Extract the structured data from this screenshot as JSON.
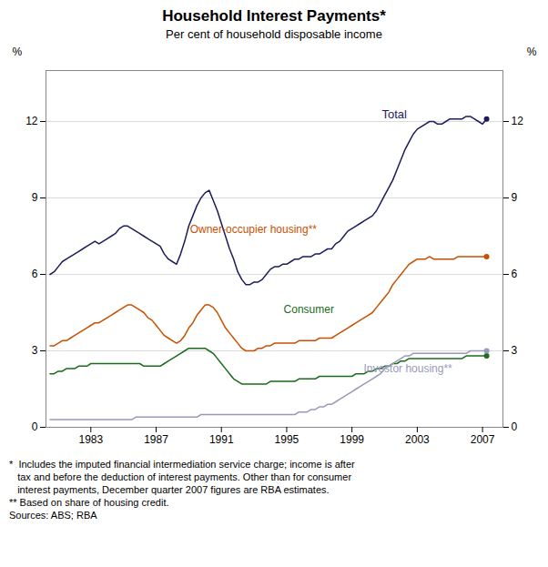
{
  "chart_data": {
    "type": "line",
    "title": "Household Interest Payments*",
    "subtitle": "Per cent of household disposable income",
    "ylabel": "%",
    "y2label": "%",
    "xlim": [
      1980.25,
      2008.25
    ],
    "xticks": [
      1983,
      1987,
      1991,
      1995,
      1999,
      2003,
      2007
    ],
    "ylim": [
      0,
      14
    ],
    "yticks": [
      0,
      3,
      6,
      9,
      12
    ],
    "y2lim": [
      0,
      14
    ],
    "y2ticks": [
      0,
      3,
      6,
      9,
      12
    ],
    "grid": "y",
    "footnotes": [
      "*  Includes the imputed financial intermediation service charge; income is after",
      "   tax and before the deduction of interest payments. Other than for consumer",
      "   interest payments, December quarter 2007 figures are RBA estimates.",
      "** Based on share of housing credit.",
      "Sources: ABS; RBA"
    ],
    "x": [
      1980.5,
      1980.75,
      1981,
      1981.25,
      1981.5,
      1981.75,
      1982,
      1982.25,
      1982.5,
      1982.75,
      1983,
      1983.25,
      1983.5,
      1983.75,
      1984,
      1984.25,
      1984.5,
      1984.75,
      1985,
      1985.25,
      1985.5,
      1985.75,
      1986,
      1986.25,
      1986.5,
      1986.75,
      1987,
      1987.25,
      1987.5,
      1987.75,
      1988,
      1988.25,
      1988.5,
      1988.75,
      1989,
      1989.25,
      1989.5,
      1989.75,
      1990,
      1990.25,
      1990.5,
      1990.75,
      1991,
      1991.25,
      1991.5,
      1991.75,
      1992,
      1992.25,
      1992.5,
      1992.75,
      1993,
      1993.25,
      1993.5,
      1993.75,
      1994,
      1994.25,
      1994.5,
      1994.75,
      1995,
      1995.25,
      1995.5,
      1995.75,
      1996,
      1996.25,
      1996.5,
      1996.75,
      1997,
      1997.25,
      1997.5,
      1997.75,
      1998,
      1998.25,
      1998.5,
      1998.75,
      1999,
      1999.25,
      1999.5,
      1999.75,
      2000,
      2000.25,
      2000.5,
      2000.75,
      2001,
      2001.25,
      2001.5,
      2001.75,
      2002,
      2002.25,
      2002.5,
      2002.75,
      2003,
      2003.25,
      2003.5,
      2003.75,
      2004,
      2004.25,
      2004.5,
      2004.75,
      2005,
      2005.25,
      2005.5,
      2005.75,
      2006,
      2006.25,
      2006.5,
      2006.75,
      2007,
      2007.25
    ],
    "series": [
      {
        "name": "Total",
        "color": "#1c1c5c",
        "values": [
          6.0,
          6.1,
          6.3,
          6.5,
          6.6,
          6.7,
          6.8,
          6.9,
          7.0,
          7.1,
          7.2,
          7.3,
          7.2,
          7.3,
          7.4,
          7.5,
          7.6,
          7.8,
          7.9,
          7.9,
          7.8,
          7.7,
          7.6,
          7.5,
          7.4,
          7.3,
          7.2,
          7.1,
          6.8,
          6.6,
          6.5,
          6.4,
          6.8,
          7.3,
          7.9,
          8.3,
          8.7,
          9.0,
          9.2,
          9.3,
          8.9,
          8.5,
          8.0,
          7.5,
          7.0,
          6.6,
          6.1,
          5.8,
          5.6,
          5.6,
          5.7,
          5.7,
          5.8,
          6.0,
          6.2,
          6.3,
          6.3,
          6.4,
          6.4,
          6.5,
          6.6,
          6.6,
          6.7,
          6.7,
          6.7,
          6.8,
          6.8,
          6.9,
          7.0,
          7.0,
          7.2,
          7.3,
          7.5,
          7.7,
          7.8,
          7.9,
          8.0,
          8.1,
          8.2,
          8.3,
          8.5,
          8.8,
          9.1,
          9.4,
          9.7,
          10.1,
          10.5,
          10.9,
          11.2,
          11.5,
          11.7,
          11.8,
          11.9,
          12.0,
          12.0,
          11.9,
          11.9,
          12.0,
          12.1,
          12.1,
          12.1,
          12.1,
          12.2,
          12.2,
          12.1,
          12.0,
          11.9,
          12.1
        ]
      },
      {
        "name": "Owner-occupier housing**",
        "color": "#c85000",
        "values": [
          3.2,
          3.2,
          3.3,
          3.4,
          3.4,
          3.5,
          3.6,
          3.7,
          3.8,
          3.9,
          4.0,
          4.1,
          4.1,
          4.2,
          4.3,
          4.4,
          4.5,
          4.6,
          4.7,
          4.8,
          4.8,
          4.7,
          4.6,
          4.5,
          4.3,
          4.2,
          4.0,
          3.8,
          3.6,
          3.5,
          3.4,
          3.3,
          3.4,
          3.6,
          3.9,
          4.1,
          4.4,
          4.6,
          4.8,
          4.8,
          4.7,
          4.5,
          4.2,
          3.9,
          3.7,
          3.5,
          3.3,
          3.1,
          3.0,
          3.0,
          3.0,
          3.1,
          3.1,
          3.2,
          3.2,
          3.3,
          3.3,
          3.3,
          3.3,
          3.3,
          3.3,
          3.4,
          3.4,
          3.4,
          3.4,
          3.4,
          3.5,
          3.5,
          3.5,
          3.5,
          3.6,
          3.7,
          3.8,
          3.9,
          4.0,
          4.1,
          4.2,
          4.3,
          4.4,
          4.5,
          4.7,
          4.9,
          5.1,
          5.3,
          5.6,
          5.8,
          6.0,
          6.2,
          6.4,
          6.5,
          6.6,
          6.6,
          6.6,
          6.7,
          6.6,
          6.6,
          6.6,
          6.6,
          6.6,
          6.6,
          6.7,
          6.7,
          6.7,
          6.7,
          6.7,
          6.7,
          6.7,
          6.7
        ]
      },
      {
        "name": "Consumer",
        "color": "#1a6b1a",
        "values": [
          2.1,
          2.1,
          2.2,
          2.2,
          2.3,
          2.3,
          2.3,
          2.4,
          2.4,
          2.4,
          2.5,
          2.5,
          2.5,
          2.5,
          2.5,
          2.5,
          2.5,
          2.5,
          2.5,
          2.5,
          2.5,
          2.5,
          2.5,
          2.4,
          2.4,
          2.4,
          2.4,
          2.4,
          2.5,
          2.6,
          2.7,
          2.8,
          2.9,
          3.0,
          3.1,
          3.1,
          3.1,
          3.1,
          3.1,
          3.0,
          2.9,
          2.7,
          2.5,
          2.3,
          2.1,
          1.9,
          1.8,
          1.7,
          1.7,
          1.7,
          1.7,
          1.7,
          1.7,
          1.7,
          1.8,
          1.8,
          1.8,
          1.8,
          1.8,
          1.8,
          1.8,
          1.9,
          1.9,
          1.9,
          1.9,
          1.9,
          2.0,
          2.0,
          2.0,
          2.0,
          2.0,
          2.0,
          2.0,
          2.0,
          2.0,
          2.1,
          2.1,
          2.1,
          2.2,
          2.2,
          2.3,
          2.3,
          2.4,
          2.4,
          2.5,
          2.5,
          2.6,
          2.6,
          2.7,
          2.7,
          2.7,
          2.7,
          2.7,
          2.7,
          2.7,
          2.7,
          2.7,
          2.7,
          2.7,
          2.7,
          2.7,
          2.7,
          2.8,
          2.8,
          2.8,
          2.8,
          2.8,
          2.8
        ]
      },
      {
        "name": "Investor housing**",
        "color": "#9999bb",
        "values": [
          0.3,
          0.3,
          0.3,
          0.3,
          0.3,
          0.3,
          0.3,
          0.3,
          0.3,
          0.3,
          0.3,
          0.3,
          0.3,
          0.3,
          0.3,
          0.3,
          0.3,
          0.3,
          0.3,
          0.3,
          0.3,
          0.4,
          0.4,
          0.4,
          0.4,
          0.4,
          0.4,
          0.4,
          0.4,
          0.4,
          0.4,
          0.4,
          0.4,
          0.4,
          0.4,
          0.4,
          0.4,
          0.5,
          0.5,
          0.5,
          0.5,
          0.5,
          0.5,
          0.5,
          0.5,
          0.5,
          0.5,
          0.5,
          0.5,
          0.5,
          0.5,
          0.5,
          0.5,
          0.5,
          0.5,
          0.5,
          0.5,
          0.5,
          0.5,
          0.5,
          0.5,
          0.6,
          0.6,
          0.6,
          0.7,
          0.7,
          0.8,
          0.8,
          0.9,
          0.9,
          1.0,
          1.1,
          1.2,
          1.3,
          1.4,
          1.5,
          1.6,
          1.7,
          1.8,
          1.9,
          2.0,
          2.1,
          2.3,
          2.4,
          2.5,
          2.6,
          2.7,
          2.8,
          2.8,
          2.9,
          2.9,
          2.9,
          2.9,
          2.9,
          2.9,
          2.9,
          2.9,
          2.9,
          2.9,
          2.9,
          2.9,
          2.9,
          2.9,
          3.0,
          3.0,
          3.0,
          3.0,
          3.0
        ]
      }
    ]
  }
}
